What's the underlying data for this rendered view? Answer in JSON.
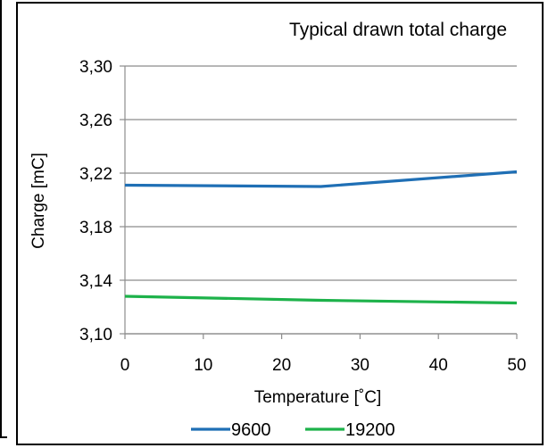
{
  "chart_data": {
    "type": "line",
    "title": "Typical drawn total charge",
    "xlabel": "Temperature [˚C]",
    "ylabel": "Charge [mC]",
    "xlim": [
      0,
      50
    ],
    "ylim": [
      3.1,
      3.3
    ],
    "x_ticks": [
      "0",
      "10",
      "20",
      "30",
      "40",
      "50"
    ],
    "y_ticks": [
      "3,10",
      "3,14",
      "3,18",
      "3,22",
      "3,26",
      "3,30"
    ],
    "grid": "horizontal",
    "legend_position": "bottom",
    "series": [
      {
        "name": "9600",
        "color": "#1f6fb5",
        "x": [
          0,
          25,
          50
        ],
        "y": [
          3.211,
          3.21,
          3.221
        ]
      },
      {
        "name": "19200",
        "color": "#1db24a",
        "x": [
          0,
          25,
          50
        ],
        "y": [
          3.128,
          3.125,
          3.123
        ]
      }
    ]
  }
}
